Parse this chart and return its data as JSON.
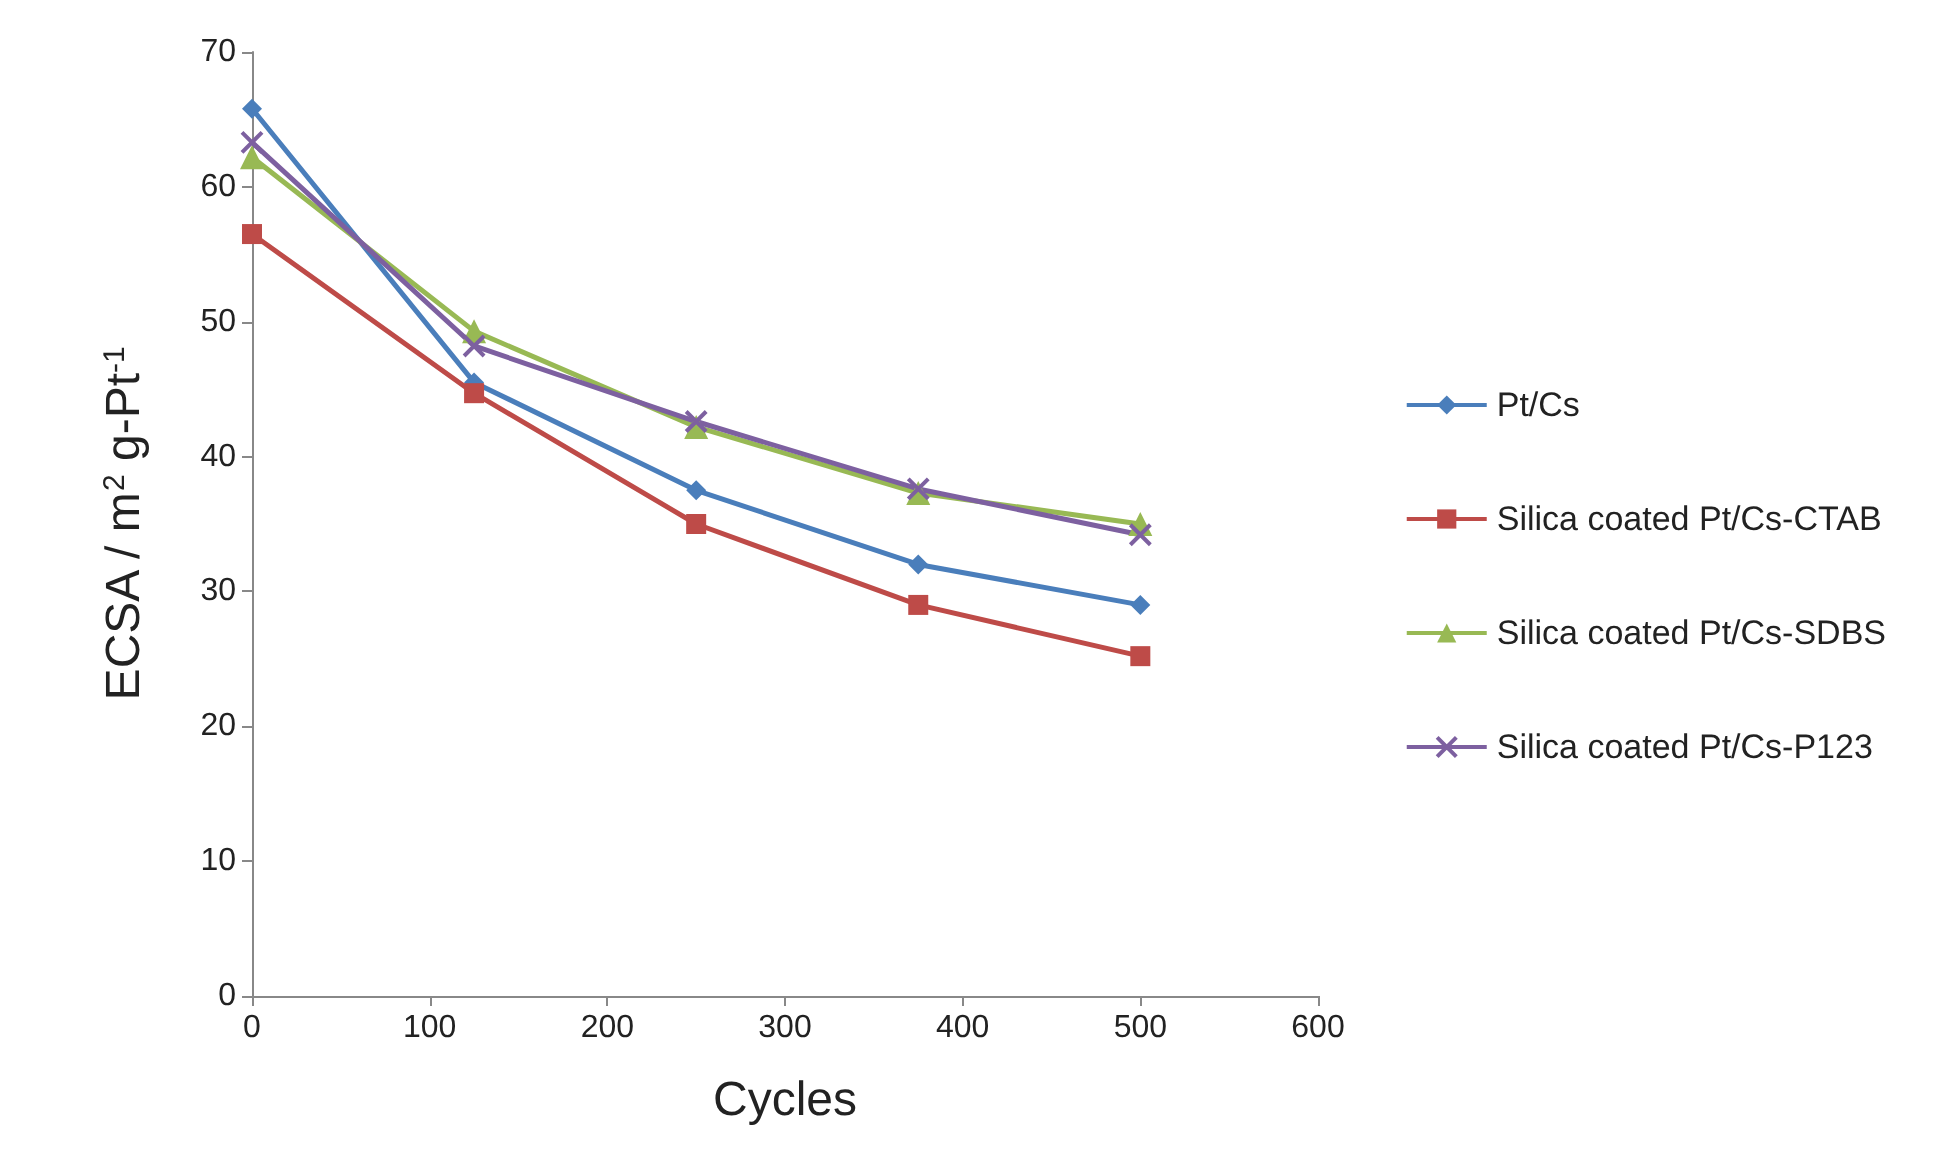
{
  "chart_data": {
    "type": "line",
    "xlabel": "Cycles",
    "ylabel": "ECSA / m$^{2}$ g-Pt$^{-1}$",
    "x": [
      0,
      125,
      250,
      375,
      500
    ],
    "xlim": [
      0,
      600
    ],
    "xticks": [
      0,
      100,
      200,
      300,
      400,
      500,
      600
    ],
    "ylim": [
      0,
      70
    ],
    "yticks": [
      0,
      10,
      20,
      30,
      40,
      50,
      60,
      70
    ],
    "grid": false,
    "legend": "right",
    "series": [
      {
        "name": "Pt/Cs",
        "color": "#4a7ebb",
        "marker": "diamond",
        "values": [
          65.8,
          45.5,
          37.5,
          32,
          29
        ]
      },
      {
        "name": "Silica coated Pt/Cs-CTAB",
        "color": "#be4b48",
        "marker": "square",
        "values": [
          56.5,
          44.7,
          35,
          29,
          25.2
        ]
      },
      {
        "name": "Silica coated Pt/Cs-SDBS",
        "color": "#98b954",
        "marker": "triangle",
        "values": [
          62.2,
          49.3,
          42.2,
          37.3,
          35
        ]
      },
      {
        "name": "Silica coated Pt/Cs-P123",
        "color": "#7d60a0",
        "marker": "cross",
        "values": [
          63.3,
          48.2,
          42.6,
          37.6,
          34.2
        ]
      }
    ]
  }
}
